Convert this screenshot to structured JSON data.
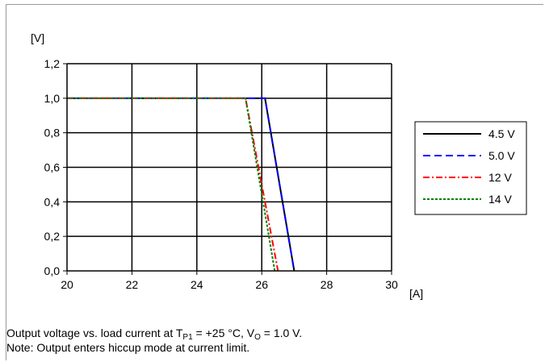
{
  "chart_data": {
    "type": "line",
    "xlabel": "[A]",
    "ylabel": "[V]",
    "xlim": [
      20,
      30
    ],
    "ylim": [
      0,
      1.2
    ],
    "x_ticks": [
      "20",
      "22",
      "24",
      "26",
      "28",
      "30"
    ],
    "y_ticks": [
      "0,0",
      "0,2",
      "0,4",
      "0,6",
      "0,8",
      "1,0",
      "1,2"
    ],
    "grid": true,
    "legend_position": "right",
    "series": [
      {
        "name": "4.5 V",
        "color": "#000000",
        "dash": "solid",
        "x": [
          20,
          26.1,
          27.0
        ],
        "y": [
          1.0,
          1.0,
          0.0
        ]
      },
      {
        "name": "5.0 V",
        "color": "#0000ff",
        "dash": "dashed",
        "x": [
          20,
          26.1,
          27.0
        ],
        "y": [
          1.0,
          1.0,
          0.0
        ]
      },
      {
        "name": "12 V",
        "color": "#ff0000",
        "dash": "dash-dot",
        "x": [
          20,
          25.5,
          26.5
        ],
        "y": [
          1.0,
          1.0,
          0.0
        ]
      },
      {
        "name": "14 V",
        "color": "#008000",
        "dash": "dotted",
        "x": [
          20,
          25.5,
          26.4
        ],
        "y": [
          1.0,
          1.0,
          0.0
        ]
      }
    ]
  },
  "caption": {
    "line1_prefix": "Output voltage vs. load current at T",
    "line1_sub1": "P1",
    "line1_mid": " = +25 °C, V",
    "line1_sub2": "O",
    "line1_suffix": " = 1.0 V.",
    "line2": "Note: Output enters hiccup mode at current limit."
  }
}
